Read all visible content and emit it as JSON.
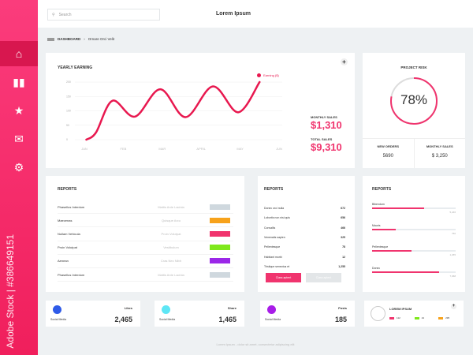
{
  "app": {
    "title": "Lorem Ipsum",
    "search_placeholder": "Search",
    "watermark": "Adobe Stock | #386649151"
  },
  "sidebar": {
    "items": [
      {
        "icon": "home-icon"
      },
      {
        "icon": "bar-chart-icon"
      },
      {
        "icon": "star-icon"
      },
      {
        "icon": "mail-icon"
      },
      {
        "icon": "gears-icon"
      }
    ]
  },
  "breadcrumb": {
    "root": "DASHBOARD",
    "current": "Ornare Orci Velit"
  },
  "earning": {
    "title": "YEARLY EARNING",
    "legend": "Earning ($)",
    "monthly_label": "MONTHLY SALES",
    "monthly_value": "$1,310",
    "total_label": "TOTAL SALES",
    "total_value": "$9,310"
  },
  "chart_data": {
    "type": "line",
    "title": "YEARLY EARNING",
    "categories": [
      "JAN",
      "FEB",
      "MAR",
      "APRIL",
      "MAY",
      "JUN"
    ],
    "yticks": [
      "200",
      "150",
      "100",
      "50",
      "0"
    ],
    "ylim": [
      0,
      200
    ],
    "series": [
      {
        "name": "Earning ($)",
        "color": "#e8184f",
        "x": [
          0.05,
          0.3,
          0.72,
          1.3,
          1.95,
          2.6,
          3.3,
          3.95,
          4.5
        ],
        "y": [
          0,
          25,
          135,
          80,
          175,
          78,
          185,
          95,
          200
        ]
      }
    ]
  },
  "risk": {
    "title": "PROJECT RISK",
    "value": "78%",
    "percent": 78,
    "new_orders_label": "NEW ORDERS",
    "new_orders_value": "5690",
    "monthly_label": "MONTHLY SALES",
    "monthly_value": "$ 3,250"
  },
  "reports1": {
    "title": "REPORTS",
    "rows": [
      {
        "name": "Phasellus Interdum",
        "desc": "Mattis Ante Lacinia",
        "color": "#cfd8de"
      },
      {
        "name": "Maecenas",
        "desc": "Quisque Arcu",
        "color": "#f7a21b"
      },
      {
        "name": "Nullam Vehicula",
        "desc": "Proin Volutpat",
        "color": "#f0346e"
      },
      {
        "name": "Proin Volutpat",
        "desc": "Vestibulum",
        "color": "#7ee81b"
      },
      {
        "name": "Aenean",
        "desc": "Cras Nec Nibh",
        "color": "#9b27e8"
      },
      {
        "name": "Phasellus Interdum",
        "desc": "Mattis Ante Lacinia",
        "color": "#cfd8de"
      }
    ]
  },
  "reports2": {
    "title": "REPORTS",
    "rows": [
      {
        "name": "Donec orci nulla",
        "value": "672"
      },
      {
        "name": "Lobortis non nisi quis",
        "value": "656"
      },
      {
        "name": "Convallis",
        "value": "466"
      },
      {
        "name": "Venenatis sapien",
        "value": "325"
      },
      {
        "name": "Pellentesque",
        "value": "78"
      },
      {
        "name": "Habitant morbi",
        "value": "12"
      },
      {
        "name": "Tristique senectus et",
        "value": "1,255"
      }
    ],
    "btn1": "Class aptent",
    "btn2": "Class aptent"
  },
  "reports3": {
    "title": "REPORTS",
    "rows": [
      {
        "name": "Bibendum",
        "value": "5,246",
        "pct": 62
      },
      {
        "name": "Mauris",
        "value": "750",
        "pct": 28
      },
      {
        "name": "Pellentesque",
        "value": "1,265",
        "pct": 47
      },
      {
        "name": "Donec",
        "value": "7,368",
        "pct": 80
      }
    ]
  },
  "stats": [
    {
      "label": "Likes",
      "sub": "Social Media",
      "value": "2,465",
      "color": "#2f5be8"
    },
    {
      "label": "Share",
      "sub": "Social Media",
      "value": "1,465",
      "color": "#5ee6f5"
    },
    {
      "label": "Posts",
      "sub": "Social Media",
      "value": "185",
      "color": "#a81de8"
    }
  ],
  "lorem": {
    "title": "LOREM IPSUM",
    "items": [
      {
        "value": "112",
        "color": "#f0346e"
      },
      {
        "value": "42",
        "color": "#7ee81b"
      },
      {
        "value": "295",
        "color": "#f7a21b"
      }
    ]
  },
  "footer": "Lorem Ipsum - dolor sit amet, consectetur adipiscing elit"
}
